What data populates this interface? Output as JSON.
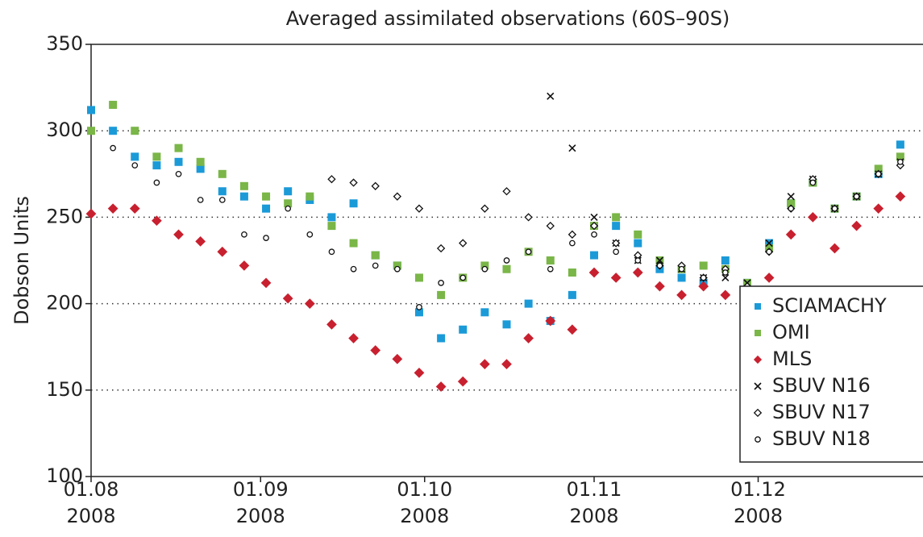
{
  "chart_data": {
    "type": "scatter",
    "title": "Averaged assimilated observations (60S–90S)",
    "y_label": "Dobson Units",
    "x": [
      "2008-08-01",
      "2008-08-05",
      "2008-08-09",
      "2008-08-13",
      "2008-08-17",
      "2008-08-21",
      "2008-08-25",
      "2008-08-29",
      "2008-09-02",
      "2008-09-06",
      "2008-09-10",
      "2008-09-14",
      "2008-09-18",
      "2008-09-22",
      "2008-09-26",
      "2008-09-30",
      "2008-10-04",
      "2008-10-08",
      "2008-10-12",
      "2008-10-16",
      "2008-10-20",
      "2008-10-24",
      "2008-10-28",
      "2008-11-01",
      "2008-11-05",
      "2008-11-09",
      "2008-11-13",
      "2008-11-17",
      "2008-11-21",
      "2008-11-25",
      "2008-11-29",
      "2008-12-03",
      "2008-12-07",
      "2008-12-11",
      "2008-12-15",
      "2008-12-19",
      "2008-12-23",
      "2008-12-27"
    ],
    "xlim": [
      "2008-08-01",
      "2008-12-31"
    ],
    "xticks": [
      {
        "value": "2008-08-01",
        "label": [
          "01.08",
          "2008"
        ]
      },
      {
        "value": "2008-09-01",
        "label": [
          "01.09",
          "2008"
        ]
      },
      {
        "value": "2008-10-01",
        "label": [
          "01.10",
          "2008"
        ]
      },
      {
        "value": "2008-11-01",
        "label": [
          "01.11",
          "2008"
        ]
      },
      {
        "value": "2008-12-01",
        "label": [
          "01.12",
          "2008"
        ]
      }
    ],
    "ylim": [
      100,
      350
    ],
    "yticks": [
      100,
      150,
      200,
      250,
      300,
      350
    ],
    "grid": true,
    "legend": "right",
    "series": [
      {
        "name": "SCIAMACHY",
        "color": "#1b9ad8",
        "marker": "square",
        "values": [
          312,
          300,
          285,
          280,
          282,
          278,
          265,
          262,
          255,
          265,
          260,
          250,
          258,
          228,
          222,
          195,
          180,
          185,
          195,
          188,
          200,
          190,
          205,
          228,
          245,
          235,
          220,
          215,
          212,
          225,
          212,
          235,
          258,
          270,
          255,
          262,
          275,
          292
        ]
      },
      {
        "name": "OMI",
        "color": "#7ab648",
        "marker": "square",
        "values": [
          300,
          315,
          300,
          285,
          290,
          282,
          275,
          268,
          262,
          258,
          262,
          245,
          235,
          228,
          222,
          215,
          205,
          215,
          222,
          220,
          230,
          225,
          218,
          245,
          250,
          240,
          225,
          220,
          222,
          220,
          212,
          232,
          258,
          270,
          255,
          262,
          278,
          285
        ]
      },
      {
        "name": "MLS",
        "color": "#c8202f",
        "marker": "diamond",
        "values": [
          252,
          255,
          255,
          248,
          240,
          236,
          230,
          222,
          212,
          203,
          200,
          188,
          180,
          173,
          168,
          160,
          152,
          155,
          165,
          165,
          180,
          190,
          185,
          218,
          215,
          218,
          210,
          205,
          210,
          205,
          200,
          215,
          240,
          250,
          232,
          245,
          255,
          262
        ]
      },
      {
        "name": "SBUV N16",
        "color": "#111111",
        "marker": "x",
        "values": [
          null,
          null,
          null,
          null,
          null,
          null,
          null,
          null,
          null,
          null,
          null,
          null,
          null,
          null,
          null,
          null,
          null,
          null,
          null,
          null,
          null,
          320,
          290,
          250,
          235,
          225,
          225,
          220,
          215,
          215,
          212,
          235,
          262,
          272,
          255,
          262,
          275,
          282
        ]
      },
      {
        "name": "SBUV N17",
        "color": "#111111",
        "marker": "square-open",
        "values": [
          null,
          null,
          null,
          null,
          null,
          null,
          null,
          null,
          null,
          null,
          null,
          272,
          270,
          268,
          262,
          255,
          232,
          235,
          255,
          265,
          250,
          245,
          240,
          245,
          235,
          228,
          222,
          222,
          215,
          220,
          210,
          230,
          255,
          272,
          255,
          262,
          275,
          280
        ]
      },
      {
        "name": "SBUV N18",
        "color": "#111111",
        "marker": "circle-open",
        "values": [
          null,
          290,
          280,
          270,
          275,
          260,
          260,
          240,
          238,
          255,
          240,
          230,
          220,
          222,
          220,
          198,
          212,
          215,
          220,
          225,
          230,
          220,
          235,
          240,
          230,
          225,
          222,
          220,
          215,
          218,
          208,
          230,
          255,
          270,
          255,
          262,
          275,
          282
        ]
      }
    ]
  }
}
